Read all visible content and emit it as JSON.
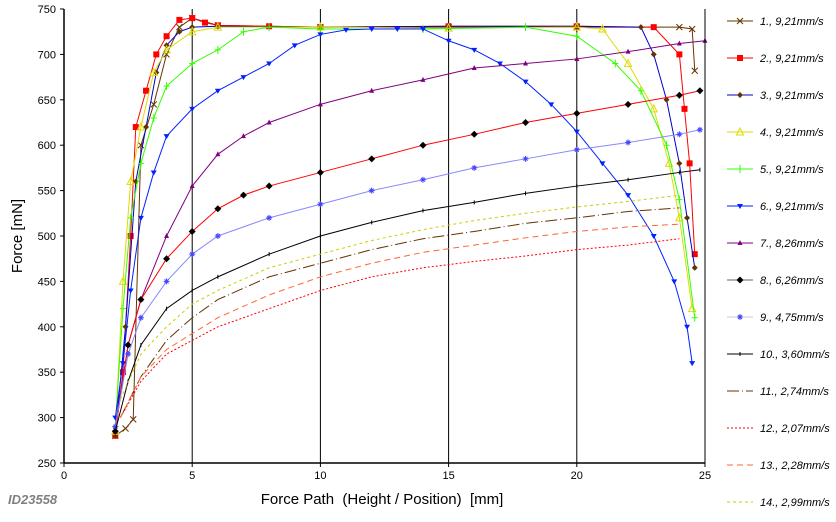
{
  "chart_data": {
    "type": "line",
    "title": "",
    "xlabel": "Force Path  (Height / Position)  [mm]",
    "ylabel": "Force  [mN]",
    "id_label": "ID23558",
    "xlim": [
      0,
      25
    ],
    "ylim": [
      250,
      750
    ],
    "xticks": [
      0,
      5,
      10,
      15,
      20,
      25
    ],
    "yticks": [
      250,
      300,
      350,
      400,
      450,
      500,
      550,
      600,
      650,
      700,
      750
    ],
    "grid": "vertical",
    "legend_position": "right",
    "series": [
      {
        "name": "1.,  9,21mm/s",
        "color": "#663300",
        "marker": "x",
        "dash": "",
        "x": [
          2,
          2.4,
          2.7,
          3,
          3.5,
          4,
          4.5,
          5,
          6,
          10,
          15,
          20,
          24,
          24.5,
          24.6
        ],
        "y": [
          280,
          288,
          298,
          600,
          645,
          700,
          730,
          740,
          732,
          730,
          730,
          730,
          730,
          728,
          682
        ]
      },
      {
        "name": "2.,  9,21mm/s",
        "color": "#ff0000",
        "marker": "square",
        "dash": "",
        "x": [
          2,
          2.3,
          2.6,
          2.8,
          3.2,
          3.6,
          4,
          4.5,
          5,
          5.5,
          6,
          8,
          10,
          15,
          20,
          23,
          24,
          24.2,
          24.4,
          24.6
        ],
        "y": [
          280,
          350,
          500,
          620,
          660,
          700,
          720,
          738,
          740,
          735,
          732,
          731,
          730,
          731,
          731,
          730,
          700,
          640,
          580,
          480
        ]
      },
      {
        "name": "3.,  9,21mm/s",
        "color": "#0000cc",
        "marker": "diamond",
        "dash": "",
        "x": [
          2,
          2.4,
          2.8,
          3.2,
          3.6,
          4,
          4.5,
          5,
          6,
          10,
          15,
          20,
          22.5,
          23,
          23.5,
          24,
          24.3,
          24.6
        ],
        "y": [
          280,
          400,
          560,
          620,
          680,
          710,
          725,
          730,
          731,
          730,
          731,
          731,
          730,
          700,
          650,
          580,
          520,
          465
        ]
      },
      {
        "name": "4.,  9,21mm/s",
        "color": "#dddd00",
        "marker": "triangle",
        "dash": "",
        "x": [
          2,
          2.3,
          2.6,
          3,
          3.5,
          4,
          5,
          6,
          10,
          15,
          20,
          21,
          22,
          23,
          23.6,
          24,
          24.5
        ],
        "y": [
          285,
          450,
          560,
          620,
          680,
          705,
          725,
          730,
          730,
          729,
          730,
          728,
          690,
          640,
          580,
          520,
          420
        ]
      },
      {
        "name": "5.,  9,21mm/s",
        "color": "#33ff00",
        "marker": "plus",
        "dash": "",
        "x": [
          2,
          2.3,
          2.6,
          3,
          3.5,
          4,
          5,
          6,
          7,
          8,
          10,
          14,
          18,
          20,
          21.5,
          22.5,
          23.5,
          24,
          24.6
        ],
        "y": [
          290,
          420,
          520,
          580,
          630,
          665,
          690,
          705,
          725,
          730,
          728,
          728,
          730,
          720,
          690,
          660,
          600,
          540,
          410
        ]
      },
      {
        "name": "6.,  9,21mm/s",
        "color": "#0022ff",
        "marker": "tridown",
        "dash": "",
        "x": [
          2,
          2.3,
          2.6,
          3,
          3.5,
          4,
          5,
          6,
          7,
          8,
          9,
          10,
          11,
          12,
          13,
          14,
          15,
          16,
          17,
          18,
          19,
          20,
          21,
          22,
          23,
          23.8,
          24.3,
          24.5
        ],
        "y": [
          300,
          360,
          440,
          520,
          570,
          610,
          640,
          660,
          675,
          690,
          710,
          722,
          727,
          728,
          728,
          728,
          715,
          705,
          690,
          670,
          645,
          615,
          580,
          545,
          500,
          450,
          400,
          360
        ]
      },
      {
        "name": "7.,  8,26mm/s",
        "color": "#800080",
        "marker": "tri",
        "dash": "",
        "x": [
          2,
          2.5,
          3,
          4,
          5,
          6,
          7,
          8,
          10,
          12,
          14,
          16,
          18,
          20,
          22,
          24,
          25
        ],
        "y": [
          290,
          380,
          430,
          500,
          555,
          590,
          610,
          625,
          645,
          660,
          672,
          685,
          690,
          695,
          703,
          712,
          715
        ]
      },
      {
        "name": "8.,  6,26mm/s",
        "color": "#ff0000",
        "marker": "bdiamond",
        "dash": "",
        "x": [
          2,
          2.5,
          3,
          4,
          5,
          6,
          7,
          8,
          10,
          12,
          14,
          16,
          18,
          20,
          22,
          24,
          24.8
        ],
        "y": [
          285,
          380,
          430,
          475,
          505,
          530,
          545,
          555,
          570,
          585,
          600,
          612,
          625,
          635,
          645,
          655,
          660
        ]
      },
      {
        "name": "9.,  4,75mm/s",
        "color": "#8888ff",
        "marker": "star",
        "dash": "",
        "x": [
          2,
          2.5,
          3,
          4,
          5,
          6,
          8,
          10,
          12,
          14,
          16,
          18,
          20,
          22,
          24,
          24.8
        ],
        "y": [
          290,
          370,
          410,
          450,
          480,
          500,
          520,
          535,
          550,
          562,
          575,
          585,
          595,
          603,
          612,
          617
        ]
      },
      {
        "name": "10.,  3,60mm/s",
        "color": "#000000",
        "marker": "dash",
        "dash": "",
        "x": [
          2,
          2.5,
          3,
          4,
          5,
          6,
          8,
          10,
          12,
          14,
          16,
          18,
          20,
          22,
          24,
          24.8
        ],
        "y": [
          285,
          340,
          380,
          420,
          440,
          455,
          480,
          500,
          515,
          528,
          537,
          547,
          555,
          562,
          570,
          573
        ]
      },
      {
        "name": "11.,  2,74mm/s",
        "color": "#663300",
        "marker": "",
        "dash": "12,3,1,3",
        "x": [
          2.2,
          3,
          4,
          5,
          6,
          8,
          10,
          12,
          14,
          16,
          18,
          20,
          22,
          24
        ],
        "y": [
          300,
          345,
          385,
          410,
          430,
          455,
          470,
          485,
          497,
          505,
          514,
          520,
          527,
          531
        ]
      },
      {
        "name": "12.,  2,07mm/s",
        "color": "#ff0000",
        "marker": "",
        "dash": "2,2",
        "x": [
          2.2,
          3,
          4,
          6,
          8,
          10,
          12,
          14,
          16,
          18,
          20,
          22,
          24
        ],
        "y": [
          300,
          340,
          370,
          400,
          420,
          440,
          455,
          465,
          472,
          478,
          485,
          490,
          497
        ]
      },
      {
        "name": "13.,  2,28mm/s",
        "color": "#ff6633",
        "marker": "",
        "dash": "6,4",
        "x": [
          2.2,
          3,
          4,
          6,
          8,
          10,
          12,
          14,
          16,
          18,
          20,
          22,
          24
        ],
        "y": [
          300,
          345,
          375,
          410,
          435,
          455,
          470,
          482,
          490,
          498,
          505,
          510,
          513
        ]
      },
      {
        "name": "14.,  2,99mm/s",
        "color": "#cccc00",
        "marker": "",
        "dash": "3,3",
        "x": [
          2.2,
          3,
          4,
          5,
          6,
          8,
          10,
          12,
          14,
          16,
          18,
          20,
          22,
          24
        ],
        "y": [
          320,
          370,
          400,
          425,
          440,
          465,
          480,
          495,
          507,
          517,
          525,
          532,
          538,
          545
        ]
      }
    ]
  }
}
